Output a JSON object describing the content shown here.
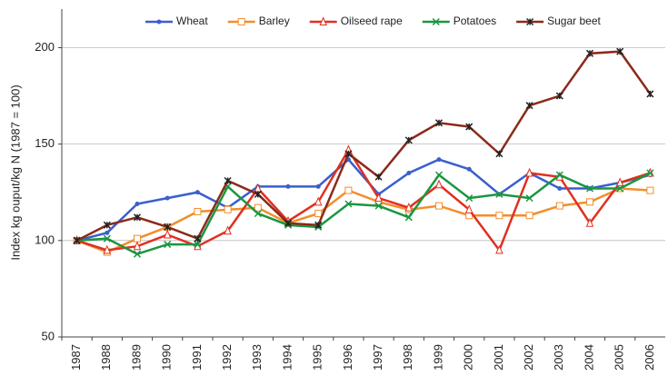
{
  "chart_data": {
    "type": "line",
    "y_label": "Index kg ouput/kg N (1987 = 100)",
    "categories": [
      "1987",
      "1988",
      "1989",
      "1990",
      "1991",
      "1992",
      "1993",
      "1994",
      "1995",
      "1996",
      "1997",
      "1998",
      "1999",
      "2000",
      "2001",
      "2002",
      "2003",
      "2004",
      "2005",
      "2006"
    ],
    "series": [
      {
        "name": "Wheat",
        "color": "#3a5fcd",
        "marker": "dot",
        "values": [
          100,
          104,
          119,
          122,
          125,
          117,
          128,
          128,
          128,
          142,
          124,
          135,
          142,
          137,
          124,
          135,
          127,
          127,
          130,
          134
        ]
      },
      {
        "name": "Barley",
        "color": "#f28e2b",
        "marker": "square",
        "values": [
          100,
          94,
          101,
          107,
          115,
          116,
          117,
          109,
          114,
          126,
          120,
          116,
          118,
          113,
          113,
          113,
          118,
          120,
          127,
          126
        ]
      },
      {
        "name": "Oilseed rape",
        "color": "#e03020",
        "marker": "triangle",
        "values": [
          100,
          95,
          97,
          103,
          97,
          105,
          127,
          110,
          120,
          147,
          122,
          117,
          129,
          116,
          95,
          135,
          133,
          109,
          130,
          135
        ]
      },
      {
        "name": "Potatoes",
        "color": "#1a9641",
        "marker": "cross",
        "values": [
          100,
          101,
          93,
          98,
          98,
          128,
          114,
          108,
          107,
          119,
          118,
          112,
          134,
          122,
          124,
          122,
          134,
          127,
          127,
          135
        ]
      },
      {
        "name": "Sugar beet",
        "color": "#8b2a1a",
        "marker": "star",
        "values": [
          100,
          108,
          112,
          107,
          101,
          131,
          124,
          109,
          108,
          145,
          133,
          152,
          161,
          159,
          145,
          170,
          175,
          197,
          198,
          176
        ]
      }
    ],
    "ylim": [
      50,
      220
    ],
    "yticks": [
      50,
      100,
      150,
      200
    ],
    "grid": true,
    "legend": "top"
  }
}
